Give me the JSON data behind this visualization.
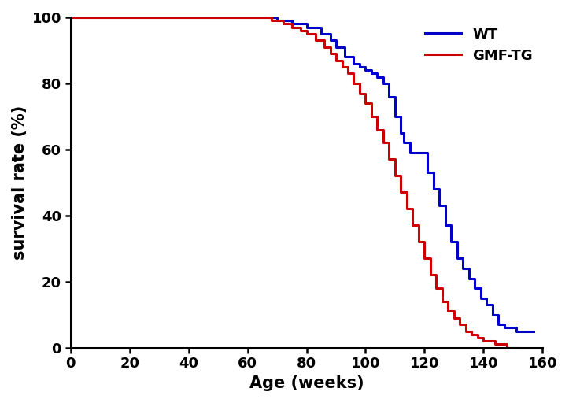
{
  "wt_times": [
    0,
    65,
    70,
    75,
    80,
    85,
    88,
    90,
    93,
    96,
    98,
    100,
    102,
    104,
    106,
    108,
    110,
    112,
    113,
    115,
    117,
    119,
    121,
    123,
    125,
    127,
    129,
    131,
    133,
    135,
    137,
    139,
    141,
    143,
    145,
    147,
    149,
    151,
    153,
    155,
    157
  ],
  "wt_surv": [
    100,
    100,
    99,
    98,
    97,
    95,
    93,
    91,
    88,
    86,
    85,
    84,
    83,
    82,
    80,
    76,
    70,
    65,
    62,
    59,
    59,
    59,
    53,
    48,
    43,
    37,
    32,
    27,
    24,
    21,
    18,
    15,
    13,
    10,
    7,
    6,
    6,
    5,
    5,
    5,
    5
  ],
  "gmf_times": [
    0,
    65,
    68,
    72,
    75,
    78,
    80,
    83,
    86,
    88,
    90,
    92,
    94,
    96,
    98,
    100,
    102,
    104,
    106,
    108,
    110,
    112,
    114,
    116,
    118,
    120,
    122,
    124,
    126,
    128,
    130,
    132,
    134,
    136,
    138,
    140,
    142,
    144,
    146,
    148,
    150,
    152
  ],
  "gmf_surv": [
    100,
    100,
    99,
    98,
    97,
    96,
    95,
    93,
    91,
    89,
    87,
    85,
    83,
    80,
    77,
    74,
    70,
    66,
    62,
    57,
    52,
    47,
    42,
    37,
    32,
    27,
    22,
    18,
    14,
    11,
    9,
    7,
    5,
    4,
    3,
    2,
    2,
    1,
    1,
    0,
    0,
    0
  ],
  "wt_color": "#0000cc",
  "gmf_color": "#cc0000",
  "xlabel": "Age (weeks)",
  "ylabel": "survival rate (%)",
  "xlim": [
    0,
    160
  ],
  "ylim": [
    0,
    100
  ],
  "xticks": [
    0,
    20,
    40,
    60,
    80,
    100,
    120,
    140,
    160
  ],
  "yticks": [
    0,
    20,
    40,
    60,
    80,
    100
  ],
  "legend_labels": [
    "WT",
    "GMF-TG"
  ],
  "linewidth": 2.2,
  "tick_fontsize": 13,
  "label_fontsize": 15
}
